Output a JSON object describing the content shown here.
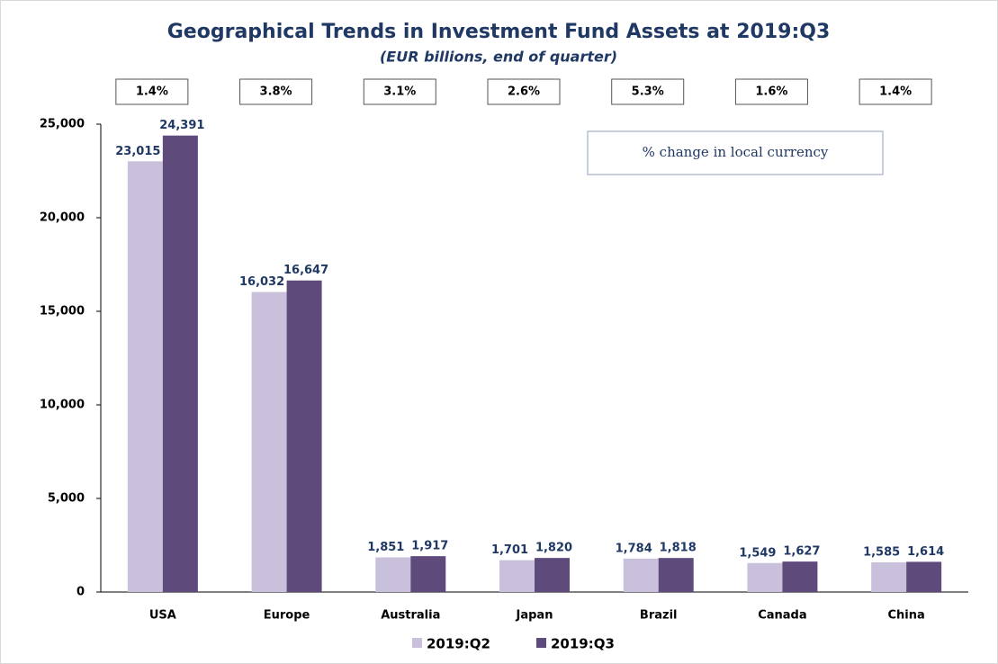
{
  "chart_data": {
    "type": "bar",
    "title": "Geographical Trends in Investment Fund Assets at 2019:Q3",
    "subtitle": "(EUR billions, end of quarter)",
    "annotation": "% change in local currency",
    "change_labels": [
      "1.4%",
      "3.8%",
      "3.1%",
      "2.6%",
      "5.3%",
      "1.6%",
      "1.4%"
    ],
    "categories": [
      "USA",
      "Europe",
      "Australia",
      "Japan",
      "Brazil",
      "Canada",
      "China"
    ],
    "series": [
      {
        "name": "2019:Q2",
        "color": "#c9c0dc",
        "values": [
          23015,
          16032,
          1851,
          1701,
          1784,
          1549,
          1585
        ],
        "value_labels": [
          "23,015",
          "16,032",
          "1,851",
          "1,701",
          "1,784",
          "1,549",
          "1,585"
        ]
      },
      {
        "name": "2019:Q3",
        "color": "#5f4b7b",
        "values": [
          24391,
          16647,
          1917,
          1820,
          1818,
          1627,
          1614
        ],
        "value_labels": [
          "24,391",
          "16,647",
          "1,917",
          "1,820",
          "1,818",
          "1,627",
          "1,614"
        ]
      }
    ],
    "ylim": [
      0,
      25000
    ],
    "yticks": [
      0,
      {
        "value": 5000,
        "label": "5,000"
      },
      {
        "value": 10000,
        "label": "10,000"
      },
      {
        "value": 15000,
        "label": "15,000"
      },
      {
        "value": 20000,
        "label": "20,000"
      },
      {
        "value": 25000,
        "label": "25,000"
      }
    ],
    "legend": "bottom"
  }
}
